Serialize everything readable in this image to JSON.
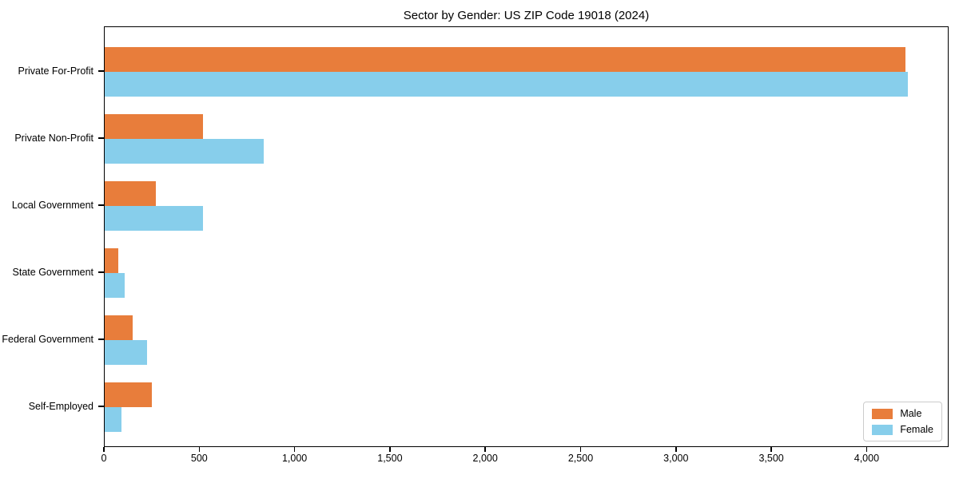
{
  "title": "Sector by Gender: US ZIP Code 19018 (2024)",
  "colors": {
    "male": "#E87D3B",
    "female": "#87CEEB",
    "axis": "#000000",
    "legend_border": "#CCCCCC",
    "background": "#FFFFFF"
  },
  "chart_data": {
    "type": "bar",
    "orientation": "horizontal",
    "title": "Sector by Gender: US ZIP Code 19018 (2024)",
    "categories": [
      "Private For-Profit",
      "Private Non-Profit",
      "Local Government",
      "State Government",
      "Federal Government",
      "Self-Employed"
    ],
    "series": [
      {
        "name": "Male",
        "color": "#E87D3B",
        "values": [
          4200,
          515,
          270,
          70,
          146,
          248
        ]
      },
      {
        "name": "Female",
        "color": "#87CEEB",
        "values": [
          4210,
          835,
          515,
          103,
          222,
          88
        ]
      }
    ],
    "xlabel": "",
    "ylabel": "",
    "xlim": [
      0,
      4430
    ],
    "xticks": {
      "values": [
        0,
        500,
        1000,
        1500,
        2000,
        2500,
        3000,
        3500,
        4000
      ],
      "labels": [
        "0",
        "500",
        "1,000",
        "1,500",
        "2,000",
        "2,500",
        "3,000",
        "3,500",
        "4,000"
      ]
    },
    "legend": {
      "position": "lower right",
      "entries": [
        "Male",
        "Female"
      ]
    },
    "grid": false
  }
}
